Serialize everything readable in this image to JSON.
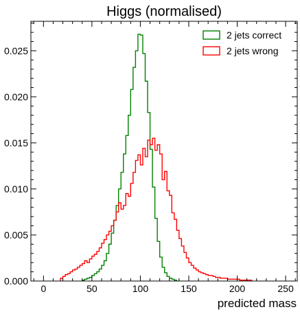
{
  "chart_data": {
    "type": "histogram-step",
    "title": "Higgs (normalised)",
    "xlabel": "predicted mass",
    "ylabel": "",
    "xlim": [
      -13,
      262
    ],
    "ylim": [
      0.0,
      0.0282
    ],
    "bin_width": 2.5,
    "grid": false,
    "legend_position": "top-right",
    "x_ticks": [
      0,
      50,
      100,
      150,
      200,
      250
    ],
    "x_tick_labels": [
      "0",
      "50",
      "100",
      "150",
      "200",
      "250"
    ],
    "y_ticks": [
      0.0,
      0.005,
      0.01,
      0.015,
      0.02,
      0.025
    ],
    "y_tick_labels": [
      "0.000",
      "0.005",
      "0.010",
      "0.015",
      "0.020",
      "0.025"
    ],
    "series": [
      {
        "name": "2 jets correct",
        "color": "#008000",
        "x_start": 40,
        "values": [
          0.0001,
          0.0002,
          0.0003,
          0.0004,
          0.0006,
          0.0008,
          0.001,
          0.0013,
          0.0017,
          0.0022,
          0.003,
          0.004,
          0.0052,
          0.0066,
          0.0082,
          0.01,
          0.0118,
          0.0138,
          0.0158,
          0.018,
          0.0208,
          0.0232,
          0.025,
          0.0268,
          0.0267,
          0.0247,
          0.0217,
          0.0183,
          0.0143,
          0.0102,
          0.0068,
          0.0043,
          0.0026,
          0.0015,
          0.0009,
          0.0005,
          0.0003,
          0.0002,
          0.0001
        ]
      },
      {
        "name": "2 jets wrong",
        "color": "#ff0000",
        "x_start": 17.5,
        "values": [
          0.0003,
          0.0005,
          0.0007,
          0.0008,
          0.001,
          0.0012,
          0.0013,
          0.0015,
          0.0017,
          0.0019,
          0.0022,
          0.002,
          0.0024,
          0.0027,
          0.0029,
          0.0032,
          0.0036,
          0.0041,
          0.0045,
          0.005,
          0.0054,
          0.006,
          0.0066,
          0.0075,
          0.0085,
          0.0078,
          0.0082,
          0.0095,
          0.0092,
          0.0106,
          0.0118,
          0.0131,
          0.0137,
          0.0126,
          0.0144,
          0.0135,
          0.0153,
          0.0148,
          0.0155,
          0.0142,
          0.0148,
          0.0138,
          0.011,
          0.0119,
          0.0098,
          0.0093,
          0.0074,
          0.0067,
          0.0055,
          0.0046,
          0.0038,
          0.0031,
          0.0025,
          0.002,
          0.0017,
          0.0014,
          0.0012,
          0.001,
          0.0009,
          0.0008,
          0.0007,
          0.0006,
          0.0006,
          0.0005,
          0.0004,
          0.0004,
          0.0003,
          0.0003,
          0.0003,
          0.0002,
          0.0002,
          0.0002,
          0.0002,
          0.0002,
          0.0001,
          0.0001,
          0.0001,
          0.0001,
          0.0001
        ]
      }
    ]
  }
}
